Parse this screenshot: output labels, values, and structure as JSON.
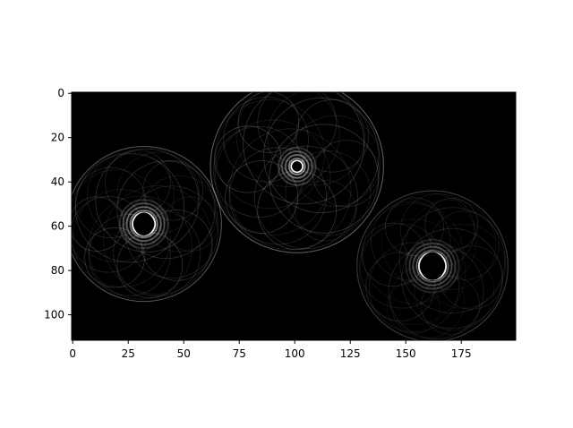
{
  "chart_data": {
    "type": "heatmap",
    "title": "",
    "xlabel": "",
    "ylabel": "",
    "colormap": "gray",
    "background_color": "#000000",
    "foreground_color": "#ffffff",
    "xlim": [
      0,
      199
    ],
    "ylim": [
      111,
      0
    ],
    "x_inverted": false,
    "y_inverted": true,
    "grid": false,
    "xticks": [
      0,
      25,
      50,
      75,
      100,
      125,
      150,
      175
    ],
    "xtick_labels": [
      "0",
      "25",
      "50",
      "75",
      "100",
      "125",
      "150",
      "175"
    ],
    "yticks": [
      0,
      20,
      40,
      60,
      80,
      100
    ],
    "ytick_labels": [
      "0",
      "20",
      "40",
      "60",
      "80",
      "100"
    ],
    "features": [
      {
        "kind": "ring-pattern",
        "center_x": 32,
        "center_y": 59,
        "radius": 35,
        "hole_radius": 4.5,
        "brightness": 0.35
      },
      {
        "kind": "ring-pattern",
        "center_x": 101,
        "center_y": 33,
        "radius": 39,
        "hole_radius": 2,
        "brightness": 0.4
      },
      {
        "kind": "ring-pattern",
        "center_x": 162,
        "center_y": 78,
        "radius": 34,
        "hole_radius": 5.5,
        "brightness": 0.25
      }
    ]
  }
}
